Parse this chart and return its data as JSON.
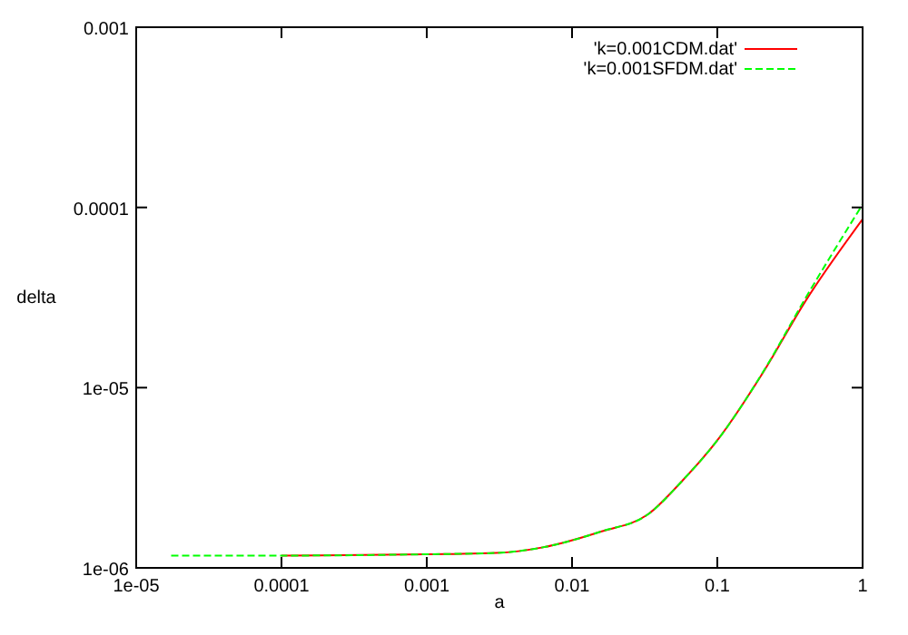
{
  "chart_data": {
    "type": "line",
    "xlabel": "a",
    "ylabel": "delta",
    "log": "xy",
    "legend": "top right",
    "grid": false,
    "xlim": [
      1e-05,
      1
    ],
    "xticks": [
      {
        "value": 1e-05,
        "label": "1e-05"
      },
      0.0001,
      0.001,
      0.01,
      0.1,
      1
    ],
    "ylim": [
      1e-06,
      0.001
    ],
    "yticks": [
      {
        "value": 1e-06,
        "label": "1e-06"
      },
      {
        "value": 1e-05,
        "label": "1e-05"
      },
      0.0001,
      0.001
    ],
    "x": [
      1.74e-05,
      0.0001,
      0.001,
      0.003,
      0.0063,
      0.0158,
      0.0333,
      0.058,
      0.1,
      0.21,
      0.4,
      1
    ],
    "series": [
      {
        "name": "'k=0.001CDM.dat'",
        "color": "#ff0000",
        "line_style": "solid",
        "values": [
          null,
          1.17e-06,
          1.19e-06,
          1.21e-06,
          1.3e-06,
          1.59e-06,
          1.98e-06,
          3.07e-06,
          5.1e-06,
          1.24e-05,
          2.98e-05,
          8.6e-05
        ]
      },
      {
        "name": "'k=0.001SFDM.dat'",
        "color": "#00ff00",
        "line_style": "dashed",
        "values": [
          1.17e-06,
          1.17e-06,
          1.19e-06,
          1.21e-06,
          1.3e-06,
          1.59e-06,
          1.98e-06,
          3.07e-06,
          5.1e-06,
          1.25e-05,
          3.09e-05,
          0.000104
        ]
      }
    ]
  }
}
